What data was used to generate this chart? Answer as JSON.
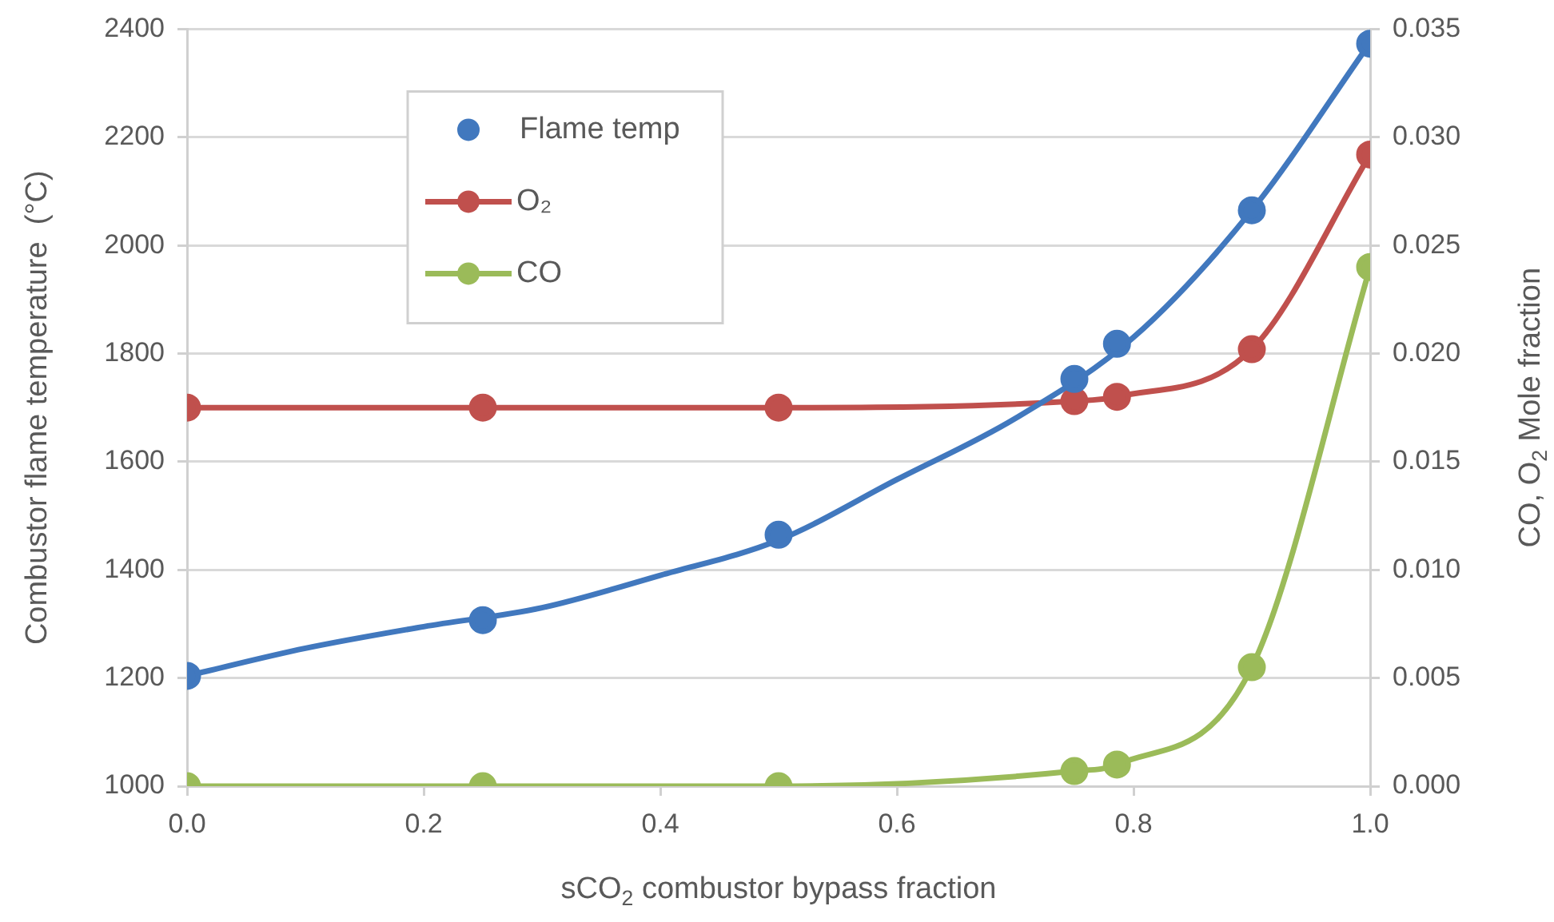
{
  "chart_data": {
    "type": "line",
    "xlabel": "sCO$_{2}$ combustor bypass fraction",
    "ylabel": "Combustor flame temperature  (°C)",
    "y2label": "CO, O$_{2}$ Mole fraction",
    "xlim": [
      0,
      1
    ],
    "xticks": [
      {
        "value": 0,
        "label": "0.0"
      },
      0.2,
      0.4,
      0.6,
      0.8,
      {
        "value": 1,
        "label": "1.0"
      }
    ],
    "ylim": [
      1000,
      2400
    ],
    "yticks": [
      1000,
      1200,
      1400,
      1600,
      1800,
      2000,
      2200,
      2400
    ],
    "y2lim": [
      0,
      0.035
    ],
    "y2ticks": [
      {
        "value": 0,
        "label": "0.000"
      },
      0.005,
      {
        "value": 0.01,
        "label": "0.010"
      },
      0.015,
      {
        "value": 0.02,
        "label": "0.020"
      },
      0.025,
      {
        "value": 0.03,
        "label": "0.030"
      },
      0.035
    ],
    "grid": "y",
    "legend": "top left",
    "line_style": "solid",
    "series": [
      {
        "name": "Flame temp",
        "type": "scatter",
        "color": "#4178be",
        "marker": "circle",
        "x": [
          0,
          0.25,
          0.5,
          0.75,
          0.786,
          0.9,
          1
        ],
        "values": [
          1204,
          1307,
          1465,
          1753,
          1818,
          2065,
          2373
        ]
      },
      {
        "type": "line",
        "color": "#4178be",
        "marker": "none",
        "x": [
          0,
          0.1,
          0.2,
          0.3,
          0.4,
          0.5,
          0.6,
          0.7,
          0.8,
          0.9,
          1
        ],
        "values": [
          1204,
          1255,
          1295,
          1330,
          1390,
          1455,
          1567,
          1680,
          1830,
          2065,
          2375
        ]
      },
      {
        "name": "O₂",
        "type": "line",
        "axis": "y2",
        "color": "#c0504d",
        "marker": "circle",
        "x": [
          0,
          0.25,
          0.5,
          0.75,
          0.786,
          0.9,
          1
        ],
        "values": [
          0.0175,
          0.0175,
          0.0175,
          0.0178,
          0.018,
          0.0202,
          0.0292
        ]
      },
      {
        "name": "CO",
        "type": "line",
        "axis": "y2",
        "color": "#9bbb59",
        "marker": "circle",
        "x": [
          0,
          0.25,
          0.5,
          0.75,
          0.786,
          0.9,
          1
        ],
        "values": [
          0,
          0,
          0,
          0.0007,
          0.001,
          0.0055,
          0.024
        ]
      }
    ]
  }
}
